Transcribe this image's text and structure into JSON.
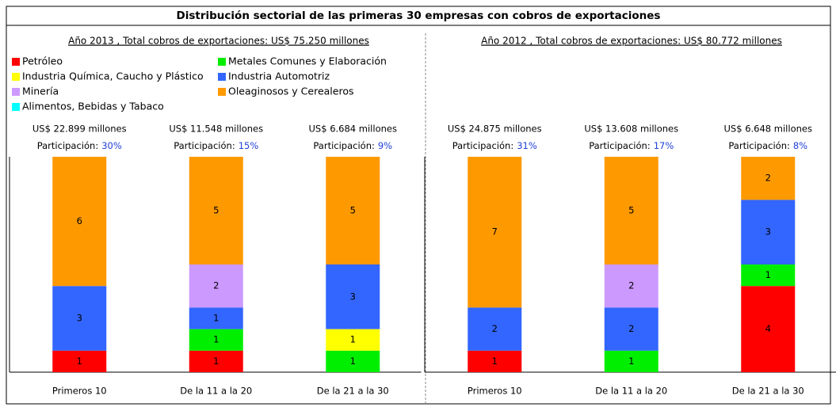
{
  "title": "Distribución sectorial de las primeras 30 empresas con cobros de exportaciones",
  "chart_data": [
    {
      "type": "bar",
      "stacked": true,
      "legend": true,
      "subtitle": "Año 2013 , Total cobros de exportaciones: US$ 75.250 millones",
      "categories": [
        "Primeros 10",
        "De la 11 a la 20",
        "De la 21 a la 30"
      ],
      "totals": [
        "US$ 22.899 millones",
        "US$ 11.548 millones",
        "US$ 6.684 millones"
      ],
      "share_label": "Participación:",
      "shares": [
        30,
        15,
        9
      ],
      "share_labels": [
        "30%",
        "15%",
        "9%"
      ],
      "ylim": [
        0,
        10
      ],
      "series": [
        {
          "name": "Petróleo",
          "color": "#ff0000",
          "values": [
            1,
            1,
            null
          ]
        },
        {
          "name": "Metales Comunes y Elaboración",
          "color": "#00ee00",
          "values": [
            null,
            1,
            1
          ]
        },
        {
          "name": "Industria Química, Caucho y Plástico",
          "color": "#ffff00",
          "values": [
            null,
            null,
            1
          ]
        },
        {
          "name": "Industria Automotriz",
          "color": "#3366ff",
          "values": [
            3,
            1,
            3
          ]
        },
        {
          "name": "Minería",
          "color": "#cc99ff",
          "values": [
            null,
            2,
            null
          ]
        },
        {
          "name": "Oleaginosos y Cerealeros",
          "color": "#ff9900",
          "values": [
            6,
            5,
            5
          ]
        },
        {
          "name": "Alimentos, Bebidas y Tabaco",
          "color": "#00ffff",
          "values": [
            null,
            null,
            null
          ]
        }
      ]
    },
    {
      "type": "bar",
      "stacked": true,
      "legend": false,
      "subtitle": "Año 2012 , Total cobros de exportaciones: US$ 80.772 millones",
      "categories": [
        "Primeros 10",
        "De la 11 a la 20",
        "De la 21 a la 30"
      ],
      "totals": [
        "US$ 24.875 millones",
        "US$ 13.608 millones",
        "US$ 6.648 millones"
      ],
      "share_label": "Participación:",
      "shares": [
        31,
        17,
        8
      ],
      "share_labels": [
        "31%",
        "17%",
        "8%"
      ],
      "ylim": [
        0,
        10
      ],
      "series": [
        {
          "color": "#ff0000",
          "values": [
            1,
            null,
            4
          ]
        },
        {
          "color": "#00ee00",
          "values": [
            null,
            1,
            1
          ]
        },
        {
          "color": "#ffff00",
          "values": [
            null,
            null,
            null
          ]
        },
        {
          "color": "#3366ff",
          "values": [
            2,
            2,
            3
          ]
        },
        {
          "color": "#cc99ff",
          "values": [
            null,
            2,
            null
          ]
        },
        {
          "color": "#ff9900",
          "values": [
            7,
            5,
            2
          ]
        },
        {
          "color": "#00ffff",
          "values": [
            null,
            null,
            null
          ]
        }
      ]
    }
  ]
}
